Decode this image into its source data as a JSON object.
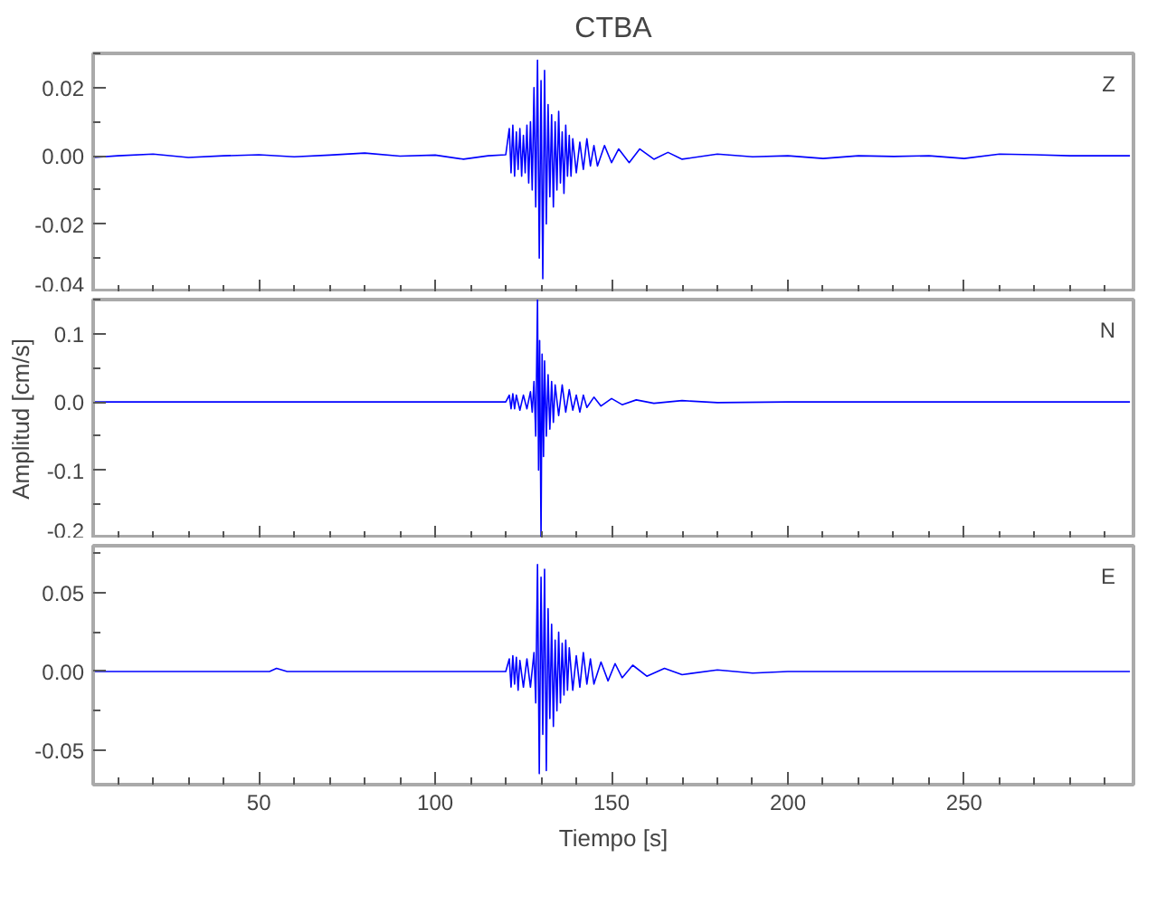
{
  "chart_data": [
    {
      "type": "line",
      "title": "CTBA",
      "annotations": [
        "Z"
      ],
      "color": "#0000ff",
      "grid": false,
      "tick_labels": "y",
      "xlim": [
        3,
        298
      ],
      "ylim": [
        -0.04,
        0.03
      ],
      "yticks": [
        {
          "value": 0.03,
          "label": null
        },
        {
          "value": 0.02,
          "label": "0.02"
        },
        {
          "value": 0.01,
          "label": null
        },
        {
          "value": 0,
          "label": "0.00"
        },
        {
          "value": -0.01,
          "label": null
        },
        {
          "value": -0.02,
          "label": "-0.02"
        },
        {
          "value": -0.03,
          "label": null
        },
        {
          "value": -0.04,
          "label": "-0.04"
        }
      ],
      "x": [
        3,
        10,
        20,
        30,
        40,
        50,
        60,
        70,
        80,
        90,
        100,
        108,
        115,
        120,
        121,
        121.5,
        122,
        122.5,
        123,
        123.5,
        124,
        124.5,
        125,
        125.5,
        126,
        126.5,
        127,
        127.5,
        128,
        128.5,
        129,
        129.5,
        130,
        130.5,
        131,
        131.5,
        132,
        132.5,
        133,
        133.5,
        134,
        134.5,
        135,
        135.5,
        136,
        136.5,
        137,
        137.5,
        138,
        138.5,
        139,
        140,
        141,
        142,
        143,
        144,
        145,
        146,
        148,
        150,
        152,
        155,
        158,
        162,
        166,
        170,
        180,
        190,
        200,
        210,
        220,
        230,
        240,
        250,
        260,
        270,
        280,
        290,
        297
      ],
      "values": [
        -0.0005,
        0.0,
        0.0005,
        -0.0005,
        0.0,
        0.0003,
        -0.0003,
        0.0002,
        0.0008,
        -0.0001,
        0.0002,
        -0.001,
        0.0,
        0.0003,
        0.008,
        -0.005,
        0.009,
        -0.006,
        0.007,
        -0.004,
        0.008,
        -0.006,
        0.006,
        -0.005,
        0.009,
        -0.008,
        0.01,
        -0.01,
        0.02,
        -0.015,
        0.028,
        -0.03,
        0.022,
        -0.036,
        0.025,
        -0.02,
        0.015,
        -0.012,
        0.012,
        -0.015,
        0.01,
        -0.01,
        0.013,
        -0.008,
        0.007,
        -0.011,
        0.009,
        -0.006,
        0.006,
        -0.006,
        0.005,
        -0.005,
        0.004,
        -0.004,
        0.005,
        -0.003,
        0.003,
        -0.003,
        0.003,
        -0.002,
        0.002,
        -0.002,
        0.002,
        -0.001,
        0.001,
        -0.001,
        0.0005,
        -0.0003,
        0.0,
        -0.0008,
        0.0,
        -0.0002,
        0.0,
        -0.0008,
        0.0005,
        0.0003,
        0.0,
        0.0,
        0.0
      ]
    },
    {
      "type": "line",
      "ylabel": "Amplitud [cm/s]",
      "annotations": [
        "N"
      ],
      "color": "#0000ff",
      "grid": false,
      "tick_labels": "y",
      "xlim": [
        3,
        298
      ],
      "ylim": [
        -0.2,
        0.15
      ],
      "yticks": [
        {
          "value": 0.15,
          "label": null
        },
        {
          "value": 0.1,
          "label": "0.1"
        },
        {
          "value": 0.05,
          "label": null
        },
        {
          "value": 0,
          "label": "0.0"
        },
        {
          "value": -0.05,
          "label": null
        },
        {
          "value": -0.1,
          "label": "-0.1"
        },
        {
          "value": -0.15,
          "label": null
        },
        {
          "value": -0.2,
          "label": "-0.2"
        }
      ],
      "x": [
        3,
        30,
        60,
        90,
        115,
        120,
        121,
        121.5,
        122,
        122.5,
        123,
        124,
        125,
        126,
        127,
        127.5,
        128,
        128.5,
        129,
        129.3,
        129.6,
        130,
        130.3,
        130.7,
        131,
        131.5,
        132,
        132.5,
        133,
        133.5,
        134,
        135,
        136,
        137,
        138,
        139,
        140,
        141,
        142,
        143,
        145,
        147,
        150,
        153,
        157,
        162,
        170,
        180,
        200,
        250,
        297
      ],
      "values": [
        0,
        0,
        0,
        0,
        0,
        0.0,
        0.01,
        -0.01,
        0.012,
        -0.01,
        0.01,
        -0.012,
        0.01,
        -0.01,
        0.015,
        -0.015,
        0.03,
        -0.05,
        0.15,
        -0.1,
        0.09,
        -0.2,
        0.07,
        -0.08,
        0.06,
        -0.05,
        0.04,
        -0.04,
        0.03,
        -0.03,
        0.025,
        -0.02,
        0.025,
        -0.015,
        0.018,
        -0.012,
        0.01,
        -0.015,
        0.01,
        -0.008,
        0.007,
        -0.006,
        0.005,
        -0.004,
        0.003,
        -0.002,
        0.002,
        -0.001,
        0.0,
        0.0,
        0.0
      ]
    },
    {
      "type": "line",
      "xlabel": "Tiempo [s]",
      "annotations": [
        "E"
      ],
      "color": "#0000ff",
      "grid": false,
      "xlim": [
        3,
        298
      ],
      "ylim": [
        -0.072,
        0.08
      ],
      "xticks": [
        {
          "value": 10,
          "label": null
        },
        {
          "value": 20,
          "label": null
        },
        {
          "value": 30,
          "label": null
        },
        {
          "value": 40,
          "label": null
        },
        {
          "value": 50,
          "label": "50"
        },
        {
          "value": 60,
          "label": null
        },
        {
          "value": 70,
          "label": null
        },
        {
          "value": 80,
          "label": null
        },
        {
          "value": 90,
          "label": null
        },
        {
          "value": 100,
          "label": "100"
        },
        {
          "value": 110,
          "label": null
        },
        {
          "value": 120,
          "label": null
        },
        {
          "value": 130,
          "label": null
        },
        {
          "value": 140,
          "label": null
        },
        {
          "value": 150,
          "label": "150"
        },
        {
          "value": 160,
          "label": null
        },
        {
          "value": 170,
          "label": null
        },
        {
          "value": 180,
          "label": null
        },
        {
          "value": 190,
          "label": null
        },
        {
          "value": 200,
          "label": "200"
        },
        {
          "value": 210,
          "label": null
        },
        {
          "value": 220,
          "label": null
        },
        {
          "value": 230,
          "label": null
        },
        {
          "value": 240,
          "label": null
        },
        {
          "value": 250,
          "label": "250"
        },
        {
          "value": 260,
          "label": null
        },
        {
          "value": 270,
          "label": null
        },
        {
          "value": 280,
          "label": null
        },
        {
          "value": 290,
          "label": null
        }
      ],
      "yticks": [
        {
          "value": 0.075,
          "label": null
        },
        {
          "value": 0.05,
          "label": "0.05"
        },
        {
          "value": 0.025,
          "label": null
        },
        {
          "value": 0,
          "label": "0.00"
        },
        {
          "value": -0.025,
          "label": null
        },
        {
          "value": -0.05,
          "label": "-0.05"
        }
      ],
      "x": [
        3,
        20,
        40,
        53,
        55,
        58,
        80,
        100,
        115,
        120,
        121,
        121.5,
        122,
        122.5,
        123,
        123.5,
        124,
        125,
        126,
        127,
        128,
        128.5,
        129,
        129.5,
        130,
        130.5,
        131,
        131.5,
        132,
        132.5,
        133,
        133.5,
        134,
        134.5,
        135,
        135.5,
        136,
        136.5,
        137,
        137.5,
        138,
        139,
        140,
        141,
        142,
        143,
        144,
        145,
        147,
        149,
        151,
        153,
        156,
        160,
        165,
        170,
        180,
        190,
        200,
        220,
        250,
        297
      ],
      "values": [
        0,
        0,
        0.0,
        0.0,
        0.002,
        0.0,
        0,
        0.0,
        0,
        0,
        0.008,
        -0.01,
        0.01,
        -0.008,
        0.009,
        -0.012,
        0.007,
        -0.01,
        0.008,
        -0.01,
        0.012,
        -0.02,
        0.068,
        -0.065,
        0.06,
        -0.04,
        0.065,
        -0.063,
        0.04,
        -0.03,
        0.03,
        -0.035,
        0.02,
        -0.025,
        0.025,
        -0.02,
        0.018,
        -0.015,
        0.02,
        -0.012,
        0.015,
        -0.012,
        0.01,
        -0.01,
        0.012,
        -0.008,
        0.008,
        -0.008,
        0.006,
        -0.006,
        0.005,
        -0.004,
        0.004,
        -0.003,
        0.002,
        -0.002,
        0.001,
        -0.001,
        0.0,
        0.0,
        0.0,
        0.0
      ]
    }
  ]
}
